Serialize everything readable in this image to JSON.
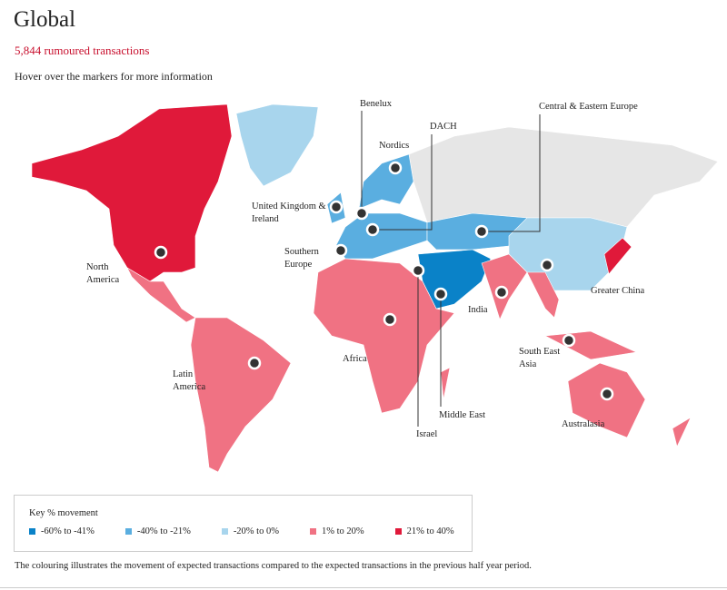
{
  "header": {
    "title": "Global",
    "subtitle": "5,844 rumoured transactions",
    "instruction": "Hover over the markers for more information"
  },
  "regions": [
    {
      "label": "North America"
    },
    {
      "label": "Latin America"
    },
    {
      "label": "United Kingdom & Ireland"
    },
    {
      "label": "Benelux"
    },
    {
      "label": "Nordics"
    },
    {
      "label": "DACH"
    },
    {
      "label": "Southern Europe"
    },
    {
      "label": "Central & Eastern Europe"
    },
    {
      "label": "Israel"
    },
    {
      "label": "Middle East"
    },
    {
      "label": "Africa"
    },
    {
      "label": "India"
    },
    {
      "label": "Greater China"
    },
    {
      "label": "South East Asia"
    },
    {
      "label": "Australasia"
    }
  ],
  "legend": {
    "title": "Key % movement",
    "items": [
      {
        "label": "-60% to -41%",
        "color": "#0a82c8"
      },
      {
        "label": "-40% to -21%",
        "color": "#5aaee0"
      },
      {
        "label": "-20% to 0%",
        "color": "#a8d5ed"
      },
      {
        "label": "1% to 20%",
        "color": "#f07283"
      },
      {
        "label": "21% to 40%",
        "color": "#e0193a"
      }
    ]
  },
  "footer": "The colouring illustrates the movement of expected transactions compared to the expected transactions in the previous half year period."
}
